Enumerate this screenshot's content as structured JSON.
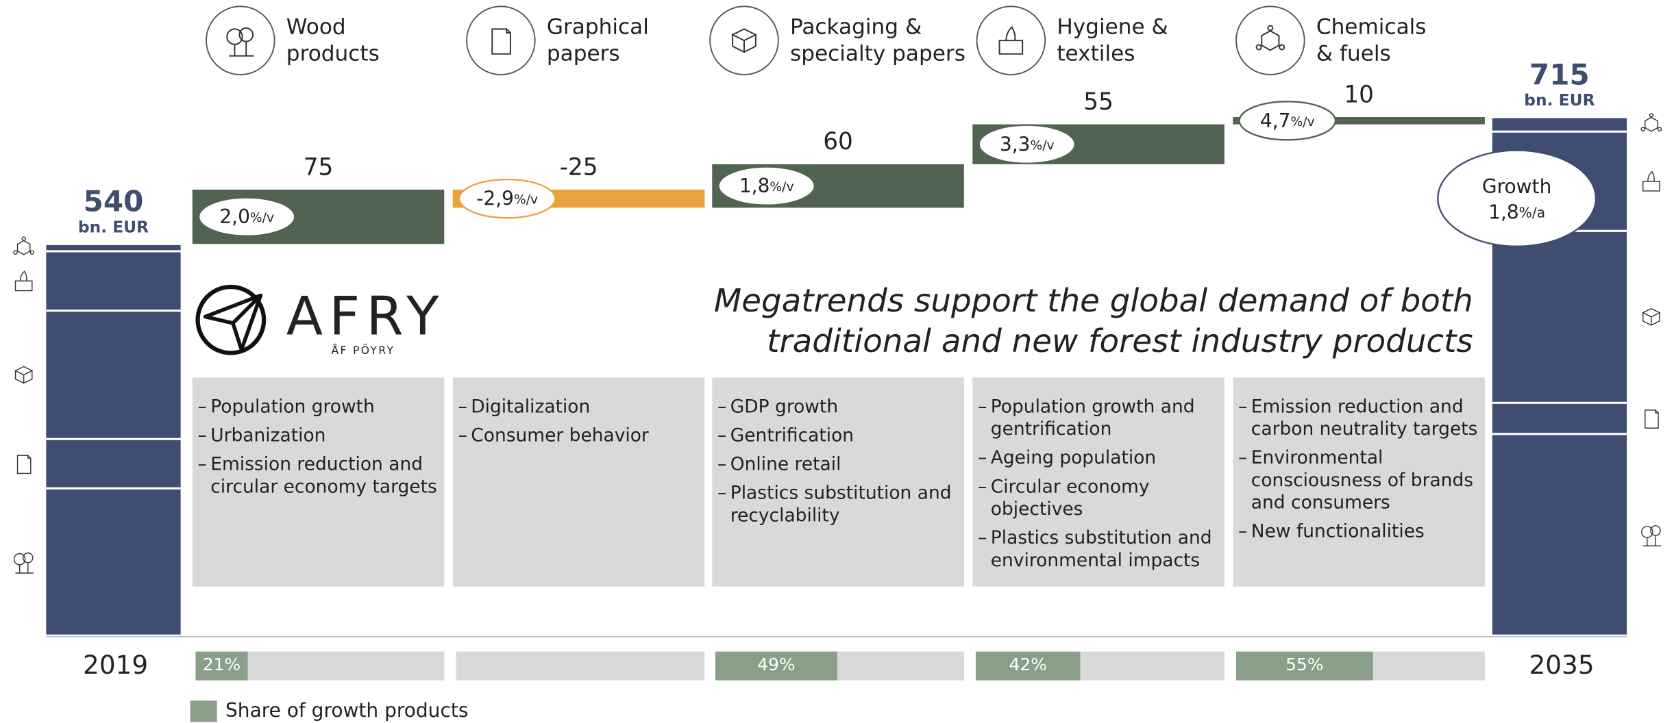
{
  "chart_data": {
    "type": "waterfall",
    "categories": [
      [
        "2019"
      ],
      [
        "Wood",
        "products"
      ],
      [
        "Graphical",
        "papers"
      ],
      [
        "Packaging &",
        "specialty papers"
      ],
      [
        "Hygiene &",
        "textiles"
      ],
      [
        "Chemicals",
        "& fuels"
      ],
      [
        "2035"
      ]
    ],
    "values": [
      540,
      75,
      -25,
      60,
      55,
      10,
      715
    ],
    "value_unit": "bn. EUR",
    "start_segments": [
      203,
      68,
      177,
      82,
      10
    ],
    "end_segments": [
      278,
      43,
      237,
      137,
      20
    ],
    "total_color": "#3f4d70",
    "positive_color": "#516451",
    "negative_color": "#e8a33d",
    "growth_rates": [
      null,
      2.0,
      -2.9,
      1.8,
      3.3,
      4.7,
      null
    ],
    "growth_rate_labels": [
      null,
      "2,0",
      "-2,9",
      "1,8",
      "3,3",
      "4,7",
      null
    ],
    "growth_rate_unit": "%/v",
    "total_growth": {
      "label": "Growth",
      "value": 1.8,
      "value_label": "1,8",
      "unit": "%/a"
    },
    "growth_shares": [
      null,
      21,
      null,
      49,
      42,
      55,
      null
    ],
    "growth_share_labels": [
      null,
      "21%",
      null,
      "49%",
      "42%",
      "55%",
      null
    ],
    "share_color": "#8a9f87",
    "legend": "Share of growth products",
    "headline": [
      "Megatrends support the global demand of both",
      "traditional and new forest industry products"
    ],
    "megatrends": [
      null,
      [
        [
          "Population growth"
        ],
        [
          "Urbanization"
        ],
        [
          "Emission reduction and",
          "circular economy targets"
        ]
      ],
      [
        [
          "Digitalization"
        ],
        [
          "Consumer behavior"
        ]
      ],
      [
        [
          "GDP growth"
        ],
        [
          "Gentrification"
        ],
        [
          "Online retail"
        ],
        [
          "Plastics substitution and",
          "recyclability"
        ]
      ],
      [
        [
          "Population growth and",
          "gentrification"
        ],
        [
          "Ageing population"
        ],
        [
          "Circular economy",
          "objectives"
        ],
        [
          "Plastics substitution and",
          "environmental impacts"
        ]
      ],
      [
        [
          "Emission reduction and",
          "carbon neutrality targets"
        ],
        [
          "Environmental",
          "consciousness of brands",
          "and consumers"
        ],
        [
          "New functionalities"
        ]
      ],
      null
    ]
  },
  "logo": {
    "name": "AFRY",
    "tagline": "ÅF PÖYRY"
  }
}
